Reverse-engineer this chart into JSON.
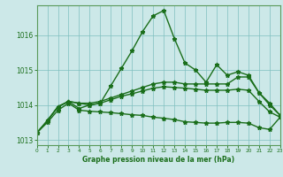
{
  "xlabel": "Graphe pression niveau de la mer (hPa)",
  "bg_color": "#cce8e8",
  "line_color": "#1a6e1a",
  "grid_color": "#7fbfbf",
  "lines": [
    {
      "x": [
        0,
        1,
        2,
        3,
        4,
        5,
        6,
        7,
        8,
        9,
        10,
        11,
        12,
        13,
        14,
        15,
        16,
        17,
        18,
        19,
        20,
        21,
        22,
        23
      ],
      "y": [
        1013.2,
        1013.55,
        1013.95,
        1014.1,
        1013.9,
        1014.0,
        1014.05,
        1014.55,
        1015.05,
        1015.55,
        1016.1,
        1016.55,
        1016.7,
        1015.9,
        1015.2,
        1015.0,
        1014.65,
        1015.15,
        1014.85,
        1014.95,
        1014.85,
        1014.35,
        1014.05,
        1013.7
      ]
    },
    {
      "x": [
        0,
        1,
        2,
        3,
        4,
        5,
        6,
        7,
        8,
        9,
        10,
        11,
        12,
        13,
        14,
        15,
        16,
        17,
        18,
        19,
        20,
        21,
        22,
        23
      ],
      "y": [
        1013.2,
        1013.55,
        1013.95,
        1014.1,
        1014.05,
        1014.05,
        1014.1,
        1014.2,
        1014.3,
        1014.4,
        1014.5,
        1014.6,
        1014.65,
        1014.65,
        1014.6,
        1014.6,
        1014.6,
        1014.6,
        1014.6,
        1014.8,
        1014.8,
        1014.35,
        1014.0,
        1013.7
      ]
    },
    {
      "x": [
        0,
        1,
        2,
        3,
        4,
        5,
        6,
        7,
        8,
        9,
        10,
        11,
        12,
        13,
        14,
        15,
        16,
        17,
        18,
        19,
        20,
        21,
        22,
        23
      ],
      "y": [
        1013.2,
        1013.55,
        1013.95,
        1014.1,
        1014.05,
        1014.0,
        1014.05,
        1014.15,
        1014.25,
        1014.32,
        1014.4,
        1014.48,
        1014.52,
        1014.5,
        1014.48,
        1014.45,
        1014.42,
        1014.42,
        1014.42,
        1014.45,
        1014.42,
        1014.1,
        1013.8,
        1013.65
      ]
    },
    {
      "x": [
        0,
        1,
        2,
        3,
        4,
        5,
        6,
        7,
        8,
        9,
        10,
        11,
        12,
        13,
        14,
        15,
        16,
        17,
        18,
        19,
        20,
        21,
        22,
        23
      ],
      "y": [
        1013.2,
        1013.5,
        1013.85,
        1014.05,
        1013.85,
        1013.82,
        1013.8,
        1013.78,
        1013.75,
        1013.72,
        1013.7,
        1013.65,
        1013.62,
        1013.58,
        1013.52,
        1013.5,
        1013.48,
        1013.48,
        1013.5,
        1013.5,
        1013.48,
        1013.35,
        1013.3,
        1013.65
      ]
    }
  ],
  "xlim": [
    0,
    23
  ],
  "ylim": [
    1012.85,
    1016.85
  ],
  "yticks": [
    1013,
    1014,
    1015,
    1016
  ],
  "xticks": [
    0,
    1,
    2,
    3,
    4,
    5,
    6,
    7,
    8,
    9,
    10,
    11,
    12,
    13,
    14,
    15,
    16,
    17,
    18,
    19,
    20,
    21,
    22,
    23
  ],
  "marker": "*",
  "markersize": 3.5,
  "linewidth": 1.0
}
